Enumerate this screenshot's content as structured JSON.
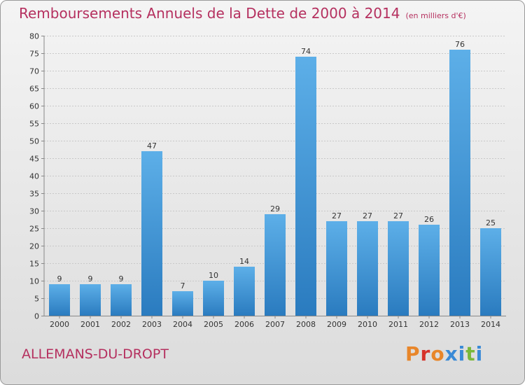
{
  "title": "Remboursements Annuels de la Dette de 2000 à 2014",
  "unit_note": "(en milliers d'€)",
  "commune": "ALLEMANS-DU-DROPT",
  "logo_text": "Proxiti",
  "colors": {
    "title": "#b5305f",
    "bar_light": "#5dafe8",
    "bar_dark": "#2a7bbf",
    "logo_letters": [
      "#e8862a",
      "#d6322a",
      "#e8862a",
      "#3a8ad6",
      "#3a8ad6",
      "#7ab83a",
      "#3a8ad6"
    ]
  },
  "chart_data": {
    "type": "bar",
    "title": "Remboursements Annuels de la Dette de 2000 à 2014",
    "xlabel": "",
    "ylabel": "",
    "categories": [
      "2000",
      "2001",
      "2002",
      "2003",
      "2004",
      "2005",
      "2006",
      "2007",
      "2008",
      "2009",
      "2010",
      "2011",
      "2012",
      "2013",
      "2014"
    ],
    "values": [
      9,
      9,
      9,
      47,
      7,
      10,
      14,
      29,
      74,
      27,
      27,
      27,
      26,
      76,
      25
    ],
    "ylim": [
      0,
      80
    ],
    "yticks": [
      0,
      5,
      10,
      15,
      20,
      25,
      30,
      35,
      40,
      45,
      50,
      55,
      60,
      65,
      70,
      75,
      80
    ],
    "grid": true,
    "data_labels": true
  }
}
